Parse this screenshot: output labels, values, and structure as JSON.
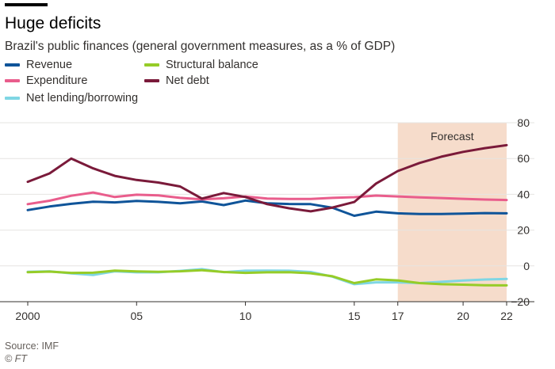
{
  "header": {
    "title": "Huge deficits",
    "subtitle": "Brazil's public finances (general government measures, as a % of GDP)"
  },
  "legend": [
    {
      "label": "Revenue",
      "color": "#0f5499"
    },
    {
      "label": "Structural balance",
      "color": "#96cc28"
    },
    {
      "label": "Expenditure",
      "color": "#e95d8c"
    },
    {
      "label": "Net debt",
      "color": "#7a1a3a"
    },
    {
      "label": "Net lending/borrowing",
      "color": "#7fd6e4"
    }
  ],
  "footer": {
    "source": "Source: IMF",
    "copyright": "© FT"
  },
  "chart_data": {
    "type": "line",
    "x": [
      2000,
      2001,
      2002,
      2003,
      2004,
      2005,
      2006,
      2007,
      2008,
      2009,
      2010,
      2011,
      2012,
      2013,
      2014,
      2015,
      2016,
      2017,
      2018,
      2019,
      2020,
      2021,
      2022
    ],
    "x_tick_labels": [
      {
        "x": 2000,
        "label": "2000"
      },
      {
        "x": 2005,
        "label": "05"
      },
      {
        "x": 2010,
        "label": "10"
      },
      {
        "x": 2015,
        "label": "15"
      },
      {
        "x": 2017,
        "label": "17"
      },
      {
        "x": 2020,
        "label": "20"
      },
      {
        "x": 2022,
        "label": "22"
      }
    ],
    "y_ticks": [
      80,
      60,
      40,
      20,
      0,
      -20
    ],
    "y_tick_labels": [
      "80",
      "60",
      "40",
      "20",
      "0",
      "−20"
    ],
    "ylim": [
      -20,
      80
    ],
    "xlim": [
      2000,
      2022
    ],
    "grid": true,
    "forecast": {
      "start": 2017,
      "end": 2022,
      "label": "Forecast",
      "color": "#f6dccb"
    },
    "series": [
      {
        "name": "Revenue",
        "color": "#0f5499",
        "values": [
          31.2,
          33.2,
          34.7,
          35.9,
          35.5,
          36.3,
          35.8,
          35.0,
          36.0,
          34.0,
          36.5,
          35.0,
          34.6,
          34.5,
          32.5,
          28.0,
          30.3,
          29.4,
          29.0,
          29.0,
          29.2,
          29.5,
          29.4
        ]
      },
      {
        "name": "Expenditure",
        "color": "#e95d8c",
        "values": [
          34.5,
          36.4,
          39.2,
          41.0,
          38.5,
          39.8,
          39.4,
          38.0,
          37.2,
          37.8,
          38.8,
          37.6,
          37.4,
          37.4,
          38.0,
          38.4,
          39.3,
          38.8,
          38.3,
          37.9,
          37.5,
          37.1,
          36.8
        ]
      },
      {
        "name": "Net lending/borrowing",
        "color": "#7fd6e4",
        "values": [
          -3.3,
          -3.0,
          -4.2,
          -5.1,
          -3.0,
          -3.6,
          -3.6,
          -2.8,
          -1.8,
          -3.5,
          -2.7,
          -2.6,
          -2.7,
          -3.4,
          -6.0,
          -10.2,
          -9.2,
          -9.2,
          -9.6,
          -8.9,
          -8.2,
          -7.6,
          -7.3
        ]
      },
      {
        "name": "Structural balance",
        "color": "#96cc28",
        "values": [
          -3.5,
          -3.2,
          -3.9,
          -3.8,
          -2.6,
          -3.1,
          -3.3,
          -3.0,
          -2.4,
          -3.4,
          -3.9,
          -3.6,
          -3.5,
          -4.1,
          -5.8,
          -9.6,
          -7.5,
          -8.1,
          -9.6,
          -10.2,
          -10.5,
          -10.8,
          -10.9
        ]
      },
      {
        "name": "Net debt",
        "color": "#7a1a3a",
        "values": [
          47.0,
          51.7,
          60.0,
          54.5,
          50.3,
          48.0,
          46.6,
          44.4,
          37.6,
          40.7,
          38.5,
          34.5,
          32.2,
          30.5,
          32.6,
          35.7,
          46.0,
          53.0,
          57.5,
          61.0,
          63.7,
          65.8,
          67.5
        ]
      }
    ]
  }
}
